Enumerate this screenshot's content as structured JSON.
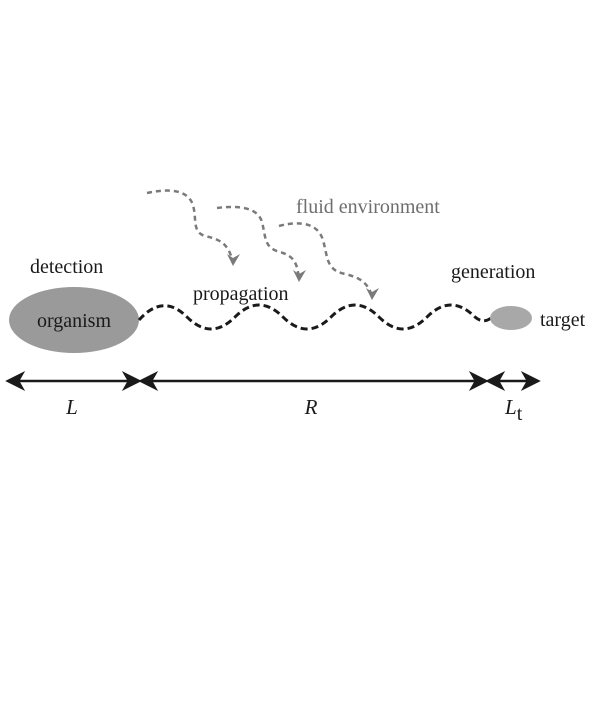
{
  "labels": {
    "detection": "detection",
    "organism": "organism",
    "propagation": "propagation",
    "fluid_environment": "fluid environment",
    "generation": "generation",
    "target": "target"
  },
  "scales": {
    "L": "L",
    "R": "R",
    "Lt_base": "L",
    "Lt_sub": "t"
  },
  "colors": {
    "organism_fill": "#9a9a9a",
    "target_fill": "#a8a8a8",
    "signal_wave": "#1a1a1a",
    "turbulence_arrows": "#7a7a7a",
    "scale_arrows": "#1a1a1a"
  }
}
